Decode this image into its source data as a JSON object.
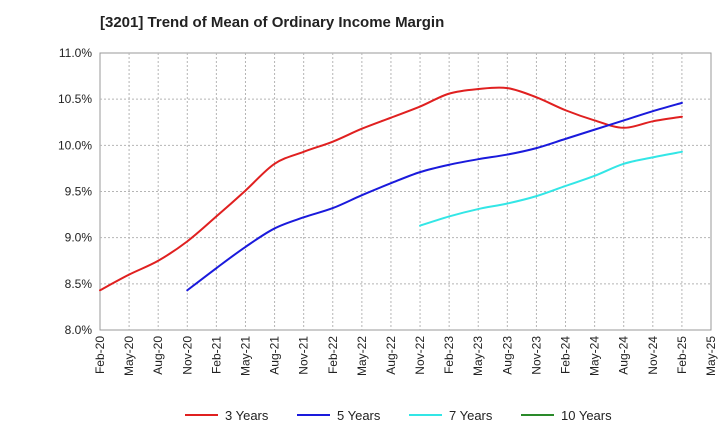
{
  "chart_data": {
    "type": "line",
    "title": "[3201]  Trend of Mean of Ordinary Income Margin",
    "xlabel": "",
    "ylabel": "",
    "x_ticks": [
      "Feb-20",
      "May-20",
      "Aug-20",
      "Nov-20",
      "Feb-21",
      "May-21",
      "Aug-21",
      "Nov-21",
      "Feb-22",
      "May-22",
      "Aug-22",
      "Nov-22",
      "Feb-23",
      "May-23",
      "Aug-23",
      "Nov-23",
      "Feb-24",
      "May-24",
      "Aug-24",
      "Nov-24",
      "Feb-25",
      "May-25"
    ],
    "y_ticks": [
      "8.0%",
      "8.5%",
      "9.0%",
      "9.5%",
      "10.0%",
      "10.5%",
      "11.0%"
    ],
    "ylim": [
      8.0,
      11.0
    ],
    "grid": true,
    "legend_position": "bottom",
    "series": [
      {
        "name": "3 Years",
        "color": "#e02020",
        "points": [
          [
            "Feb-20",
            8.43
          ],
          [
            "May-20",
            8.6
          ],
          [
            "Aug-20",
            8.75
          ],
          [
            "Nov-20",
            8.96
          ],
          [
            "Feb-21",
            9.23
          ],
          [
            "May-21",
            9.51
          ],
          [
            "Aug-21",
            9.8
          ],
          [
            "Nov-21",
            9.93
          ],
          [
            "Feb-22",
            10.04
          ],
          [
            "May-22",
            10.18
          ],
          [
            "Aug-22",
            10.3
          ],
          [
            "Nov-22",
            10.42
          ],
          [
            "Feb-23",
            10.56
          ],
          [
            "May-23",
            10.61
          ],
          [
            "Aug-23",
            10.62
          ],
          [
            "Nov-23",
            10.52
          ],
          [
            "Feb-24",
            10.38
          ],
          [
            "May-24",
            10.27
          ],
          [
            "Aug-24",
            10.19
          ],
          [
            "Nov-24",
            10.26
          ],
          [
            "Feb-25",
            10.31
          ]
        ]
      },
      {
        "name": "5 Years",
        "color": "#1a1adc",
        "points": [
          [
            "Nov-20",
            8.43
          ],
          [
            "Feb-21",
            8.67
          ],
          [
            "May-21",
            8.9
          ],
          [
            "Aug-21",
            9.1
          ],
          [
            "Nov-21",
            9.22
          ],
          [
            "Feb-22",
            9.32
          ],
          [
            "May-22",
            9.46
          ],
          [
            "Aug-22",
            9.59
          ],
          [
            "Nov-22",
            9.71
          ],
          [
            "Feb-23",
            9.79
          ],
          [
            "May-23",
            9.85
          ],
          [
            "Aug-23",
            9.9
          ],
          [
            "Nov-23",
            9.97
          ],
          [
            "Feb-24",
            10.07
          ],
          [
            "May-24",
            10.17
          ],
          [
            "Aug-24",
            10.27
          ],
          [
            "Nov-24",
            10.37
          ],
          [
            "Feb-25",
            10.46
          ]
        ]
      },
      {
        "name": "7 Years",
        "color": "#33e6e6",
        "points": [
          [
            "Nov-22",
            9.13
          ],
          [
            "Feb-23",
            9.23
          ],
          [
            "May-23",
            9.31
          ],
          [
            "Aug-23",
            9.37
          ],
          [
            "Nov-23",
            9.45
          ],
          [
            "Feb-24",
            9.56
          ],
          [
            "May-24",
            9.67
          ],
          [
            "Aug-24",
            9.8
          ],
          [
            "Nov-24",
            9.87
          ],
          [
            "Feb-25",
            9.93
          ]
        ]
      },
      {
        "name": "10 Years",
        "color": "#2a8a2a",
        "points": []
      }
    ]
  }
}
